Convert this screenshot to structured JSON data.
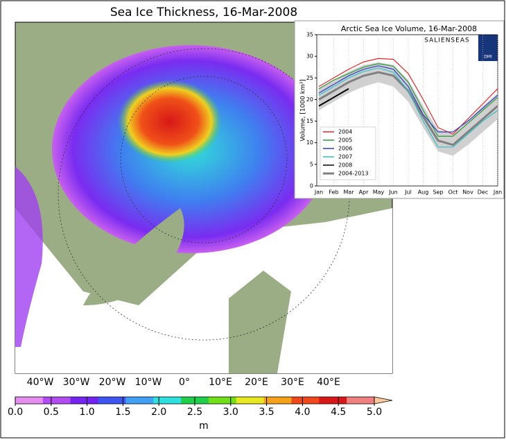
{
  "map": {
    "title": "Sea Ice Thickness, 16-Mar-2008",
    "lon_labels": [
      "40°W",
      "30°W",
      "20°W",
      "10°W",
      "0°",
      "10°E",
      "20°E",
      "30°E",
      "40°E"
    ],
    "colorbar": {
      "label": "m",
      "lim": [
        0,
        5
      ],
      "colors": [
        "#e58ef0",
        "#b24cf2",
        "#7322f0",
        "#3f55f2",
        "#3fa0f5",
        "#2fe0e0",
        "#20d04a",
        "#72e018",
        "#e8e820",
        "#f6a21a",
        "#f0481a",
        "#d81818",
        "#f08080",
        "#fbc89c"
      ],
      "ticks": [
        {
          "value": 0,
          "label": "0.0"
        },
        {
          "value": 0.5,
          "label": "0.5"
        },
        {
          "value": 1,
          "label": "1.0"
        },
        {
          "value": 1.5,
          "label": "1.5"
        },
        {
          "value": 2,
          "label": "2.0"
        },
        {
          "value": 2.5,
          "label": "2.5"
        },
        {
          "value": 3,
          "label": "3.0"
        },
        {
          "value": 3.5,
          "label": "3.5"
        },
        {
          "value": 4,
          "label": "4.0"
        },
        {
          "value": 4.5,
          "label": "4.5"
        },
        {
          "value": 5,
          "label": "5.0"
        }
      ]
    }
  },
  "logo": {
    "text": "SALIENSEAS",
    "badge": "DMI"
  },
  "chart_data": {
    "type": "line",
    "title": "Arctic Sea Ice Volume, 16-Mar-2008",
    "y_label": "Volume, [1000 km³]",
    "categories": [
      "Jan",
      "Feb",
      "Mar",
      "Apr",
      "May",
      "Jun",
      "Jul",
      "Aug",
      "Sep",
      "Oct",
      "Nov",
      "Dec",
      "Jan"
    ],
    "ylim": [
      0,
      35
    ],
    "yticks": [
      0,
      5,
      10,
      15,
      20,
      25,
      30,
      35
    ],
    "legend": "lower left",
    "series": [
      {
        "name": "2004",
        "color": "#e8262a",
        "values": [
          23,
          25,
          27,
          28.7,
          29.5,
          29.3,
          26,
          20,
          13.5,
          12,
          15.5,
          19,
          22.5
        ]
      },
      {
        "name": "2005",
        "color": "#2a9a3a",
        "values": [
          22.5,
          24.5,
          26,
          27.5,
          28.3,
          27.7,
          24,
          17.5,
          11.5,
          11.5,
          14.5,
          17.5,
          20.5
        ]
      },
      {
        "name": "2006",
        "color": "#2a3ac0",
        "values": [
          21.5,
          23.5,
          25.5,
          27,
          27.8,
          27,
          23,
          16.5,
          12.5,
          12.5,
          15,
          18,
          21
        ]
      },
      {
        "name": "2007",
        "color": "#30c0c8",
        "values": [
          21,
          23,
          25,
          26.5,
          27.3,
          26.3,
          22,
          15,
          9,
          9,
          12,
          15,
          17.5
        ]
      },
      {
        "name": "2008",
        "color": "#000000",
        "values": [
          18.5,
          20.5,
          22.5,
          null,
          null,
          null,
          null,
          null,
          null,
          null,
          null,
          null,
          null
        ]
      },
      {
        "name": "2004-2013",
        "color": "#808080",
        "values": [
          20,
          22,
          24,
          25.5,
          26.3,
          25.5,
          22,
          16,
          10.5,
          9.5,
          12.5,
          15.5,
          18.5
        ],
        "band": {
          "color": "#d0d0d0",
          "low": [
            17.5,
            19.5,
            21.5,
            23,
            24,
            23,
            19.5,
            13.5,
            8,
            7,
            9.5,
            12.5,
            15.5
          ],
          "high": [
            22.5,
            24.5,
            26.5,
            28,
            28.6,
            28,
            24.5,
            18.5,
            13,
            12,
            15,
            18.5,
            21.5
          ]
        }
      }
    ]
  }
}
